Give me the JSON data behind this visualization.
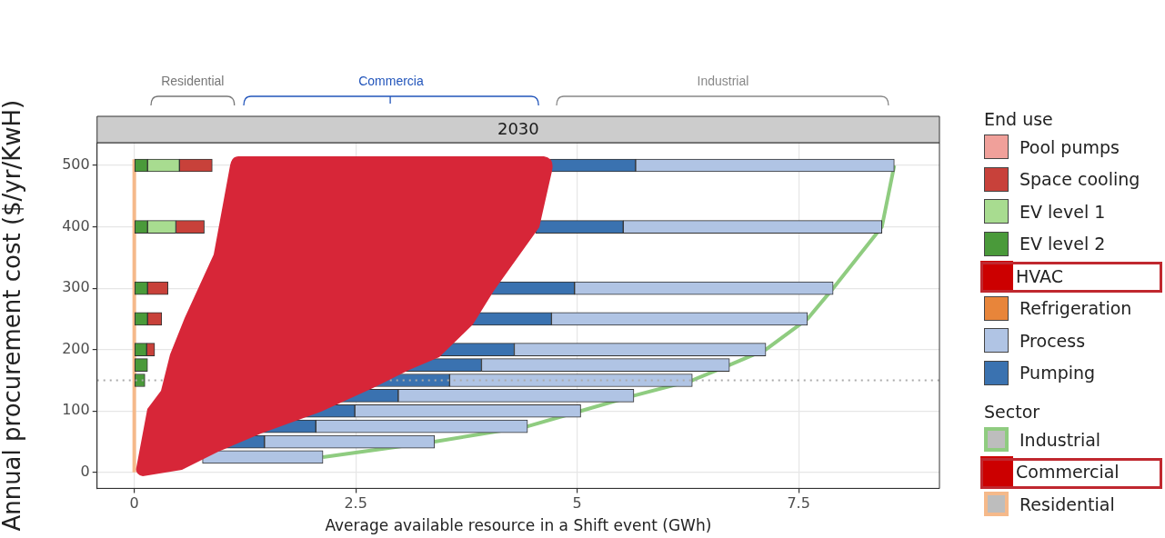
{
  "chart_data": {
    "type": "bar",
    "orientation": "horizontal",
    "title": "2030",
    "xlabel": "Average available resource in a Shift event (GWh)",
    "ylabel": "Annual procurement cost ($/yr/KwH)",
    "legend_title": "End use",
    "legend": "right",
    "x": [
      500,
      400,
      300,
      250,
      200,
      175,
      150,
      125,
      100,
      75,
      50,
      25
    ],
    "series": [
      {
        "name": "Pool pumps",
        "color": "#f0a09a",
        "base": [
          null,
          null,
          null,
          null,
          null,
          null,
          null,
          null,
          null,
          null,
          null,
          null
        ],
        "values": [
          null,
          null,
          null,
          null,
          null,
          null,
          null,
          null,
          null,
          null,
          null,
          null
        ]
      },
      {
        "name": "Space cooling",
        "color": "#c8413a",
        "base": [
          0.51,
          0.47,
          0.15,
          0.15,
          0.14,
          null,
          null,
          null,
          null,
          null,
          null,
          null
        ],
        "values": [
          0.37,
          0.32,
          0.23,
          0.16,
          0.09,
          null,
          null,
          null,
          null,
          null,
          null,
          null
        ]
      },
      {
        "name": "EV level 1",
        "color": "#a8dc90",
        "base": [
          0.15,
          0.15,
          null,
          null,
          null,
          null,
          null,
          null,
          null,
          null,
          null,
          null
        ],
        "values": [
          0.36,
          0.32,
          null,
          null,
          null,
          null,
          null,
          null,
          null,
          null,
          null,
          null
        ]
      },
      {
        "name": "EV level 2",
        "color": "#4a9a3a",
        "base": [
          0,
          0,
          0,
          0,
          0,
          0,
          0,
          null,
          null,
          null,
          null,
          null
        ],
        "values": [
          0.15,
          0.15,
          0.15,
          0.15,
          0.14,
          0.15,
          0.12,
          null,
          null,
          null,
          null,
          null
        ]
      },
      {
        "name": "HVAC",
        "color": "#cc0000",
        "values": [
          null,
          null,
          null,
          null,
          null,
          null,
          null,
          null,
          null,
          null,
          null,
          null
        ]
      },
      {
        "name": "Refrigeration",
        "color": "#e8853a",
        "base": [
          null,
          null,
          null,
          null,
          null,
          null,
          null,
          null,
          null,
          null,
          null,
          null
        ],
        "values": [
          null,
          null,
          null,
          null,
          null,
          null,
          null,
          null,
          null,
          null,
          null,
          null
        ]
      },
      {
        "name": "Process",
        "color": "#b0c4e4",
        "base": [
          5.66,
          5.52,
          4.97,
          4.71,
          4.29,
          3.92,
          3.56,
          2.98,
          2.49,
          2.05,
          1.47,
          0.77
        ],
        "values": [
          2.92,
          2.92,
          2.92,
          2.89,
          2.84,
          2.8,
          2.74,
          2.66,
          2.55,
          2.39,
          1.92,
          1.36
        ]
      },
      {
        "name": "Pumping",
        "color": "#3a72b0",
        "base": [
          4.66,
          4.53,
          3.9,
          3.73,
          3.35,
          2.98,
          2.64,
          2.0,
          1.6,
          1.29,
          0.83,
          null
        ],
        "values": [
          1.0,
          0.99,
          1.07,
          0.98,
          0.94,
          0.94,
          0.92,
          0.98,
          0.89,
          0.76,
          0.64,
          null
        ]
      },
      {
        "name": "Industrial",
        "type": "line",
        "color": "#8fcc80",
        "x": [
          25,
          50,
          75,
          100,
          125,
          150,
          175,
          200,
          250,
          300,
          400,
          500
        ],
        "values": [
          2.13,
          3.39,
          4.44,
          5.04,
          5.64,
          6.3,
          6.72,
          7.13,
          7.6,
          7.89,
          8.44,
          8.58
        ]
      },
      {
        "name": "Commercial",
        "type": "line",
        "color": "#cc0000",
        "x": [
          null
        ],
        "values": [
          null
        ]
      },
      {
        "name": "Residential",
        "type": "line",
        "color": "#f5b98a",
        "x": [
          0,
          510
        ],
        "values": [
          0,
          0
        ]
      }
    ],
    "xlim": [
      -0.42,
      9.09
    ],
    "xticks": [
      0,
      2.5,
      5,
      7.5
    ],
    "ylim": [
      -26,
      537
    ],
    "yticks": [
      0,
      100,
      200,
      300,
      400,
      500
    ],
    "grid": true,
    "marker": "none",
    "ref_lines": [
      {
        "axis": "y",
        "value": 150,
        "color": "#aaaaaa",
        "line_style": "dotted"
      }
    ],
    "annotations": [
      "Residential",
      "Commercia",
      "Industrial",
      "Sector"
    ]
  }
}
